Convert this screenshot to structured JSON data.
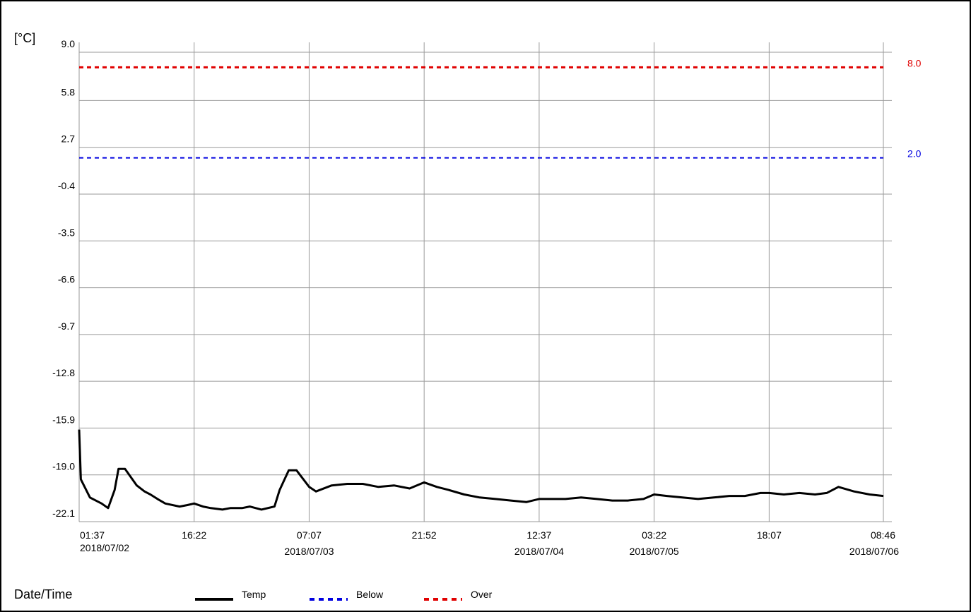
{
  "chart_data": {
    "type": "line",
    "y_unit": "[°C]",
    "xlabel": "Date/Time",
    "ylim": [
      -22.1,
      9.0
    ],
    "y_ticks": [
      "9.0",
      "5.8",
      "2.7",
      "-0.4",
      "-3.5",
      "-6.6",
      "-9.7",
      "-12.8",
      "-15.9",
      "-19.0",
      "-22.1"
    ],
    "x_range": [
      "2018-07-02 01:37",
      "2018-07-06 08:46"
    ],
    "x_ticks": [
      {
        "time": "01:37",
        "date": "2018/07/02",
        "at": "2018-07-02 01:37"
      },
      {
        "time": "16:22",
        "date": "",
        "at": "2018-07-02 16:22"
      },
      {
        "time": "07:07",
        "date": "2018/07/03",
        "at": "2018-07-03 07:07"
      },
      {
        "time": "21:52",
        "date": "",
        "at": "2018-07-03 21:52"
      },
      {
        "time": "12:37",
        "date": "2018/07/04",
        "at": "2018-07-04 12:37"
      },
      {
        "time": "03:22",
        "date": "2018/07/05",
        "at": "2018-07-05 03:22"
      },
      {
        "time": "18:07",
        "date": "",
        "at": "2018-07-05 18:07"
      },
      {
        "time": "08:46",
        "date": "2018/07/06",
        "at": "2018-07-06 08:46"
      }
    ],
    "thresholds": [
      {
        "name": "Over",
        "value": 8.0,
        "label": "8.0",
        "color": "#e00000"
      },
      {
        "name": "Below",
        "value": 2.0,
        "label": "2.0",
        "color": "#0000e0"
      }
    ],
    "series": [
      {
        "name": "Temp",
        "color": "#000000",
        "x": [
          "2018-07-02 01:37",
          "2018-07-02 01:50",
          "2018-07-02 03:00",
          "2018-07-02 04:30",
          "2018-07-02 05:20",
          "2018-07-02 06:10",
          "2018-07-02 06:40",
          "2018-07-02 07:30",
          "2018-07-02 09:00",
          "2018-07-02 10:00",
          "2018-07-02 10:45",
          "2018-07-02 11:40",
          "2018-07-02 12:40",
          "2018-07-02 14:30",
          "2018-07-02 15:30",
          "2018-07-02 16:22",
          "2018-07-02 17:30",
          "2018-07-02 18:30",
          "2018-07-02 20:00",
          "2018-07-02 21:00",
          "2018-07-02 22:30",
          "2018-07-02 23:30",
          "2018-07-03 01:00",
          "2018-07-03 02:40",
          "2018-07-03 03:20",
          "2018-07-03 04:30",
          "2018-07-03 05:30",
          "2018-07-03 07:07",
          "2018-07-03 08:00",
          "2018-07-03 10:00",
          "2018-07-03 12:00",
          "2018-07-03 14:00",
          "2018-07-03 16:00",
          "2018-07-03 18:00",
          "2018-07-03 20:00",
          "2018-07-03 21:52",
          "2018-07-03 23:30",
          "2018-07-04 01:00",
          "2018-07-04 03:00",
          "2018-07-04 05:00",
          "2018-07-04 07:00",
          "2018-07-04 09:00",
          "2018-07-04 11:00",
          "2018-07-04 12:37",
          "2018-07-04 14:00",
          "2018-07-04 16:00",
          "2018-07-04 18:00",
          "2018-07-04 20:00",
          "2018-07-04 22:00",
          "2018-07-05 00:00",
          "2018-07-05 02:00",
          "2018-07-05 03:22",
          "2018-07-05 05:00",
          "2018-07-05 07:00",
          "2018-07-05 09:00",
          "2018-07-05 11:00",
          "2018-07-05 13:00",
          "2018-07-05 15:00",
          "2018-07-05 17:00",
          "2018-07-05 18:07",
          "2018-07-05 20:00",
          "2018-07-05 22:00",
          "2018-07-06 00:00",
          "2018-07-06 01:30",
          "2018-07-06 03:00",
          "2018-07-06 05:00",
          "2018-07-06 07:00",
          "2018-07-06 08:46"
        ],
        "values": [
          -16.0,
          -19.3,
          -20.5,
          -20.9,
          -21.2,
          -20.0,
          -18.6,
          -18.6,
          -19.7,
          -20.1,
          -20.3,
          -20.6,
          -20.9,
          -21.1,
          -21.0,
          -20.9,
          -21.1,
          -21.2,
          -21.3,
          -21.2,
          -21.2,
          -21.1,
          -21.3,
          -21.1,
          -20.0,
          -18.7,
          -18.7,
          -19.8,
          -20.1,
          -19.7,
          -19.6,
          -19.6,
          -19.8,
          -19.7,
          -19.9,
          -19.5,
          -19.8,
          -20.0,
          -20.3,
          -20.5,
          -20.6,
          -20.7,
          -20.8,
          -20.6,
          -20.6,
          -20.6,
          -20.5,
          -20.6,
          -20.7,
          -20.7,
          -20.6,
          -20.3,
          -20.4,
          -20.5,
          -20.6,
          -20.5,
          -20.4,
          -20.4,
          -20.2,
          -20.2,
          -20.3,
          -20.2,
          -20.3,
          -20.2,
          -19.8,
          -20.1,
          -20.3,
          -20.4
        ]
      }
    ],
    "legend": [
      {
        "label": "Temp",
        "style": "solid",
        "color": "#000000"
      },
      {
        "label": "Below",
        "style": "dotted",
        "color": "#0000e0"
      },
      {
        "label": "Over",
        "style": "dotted",
        "color": "#e00000"
      }
    ],
    "grid": true,
    "legend_position": "bottom"
  }
}
